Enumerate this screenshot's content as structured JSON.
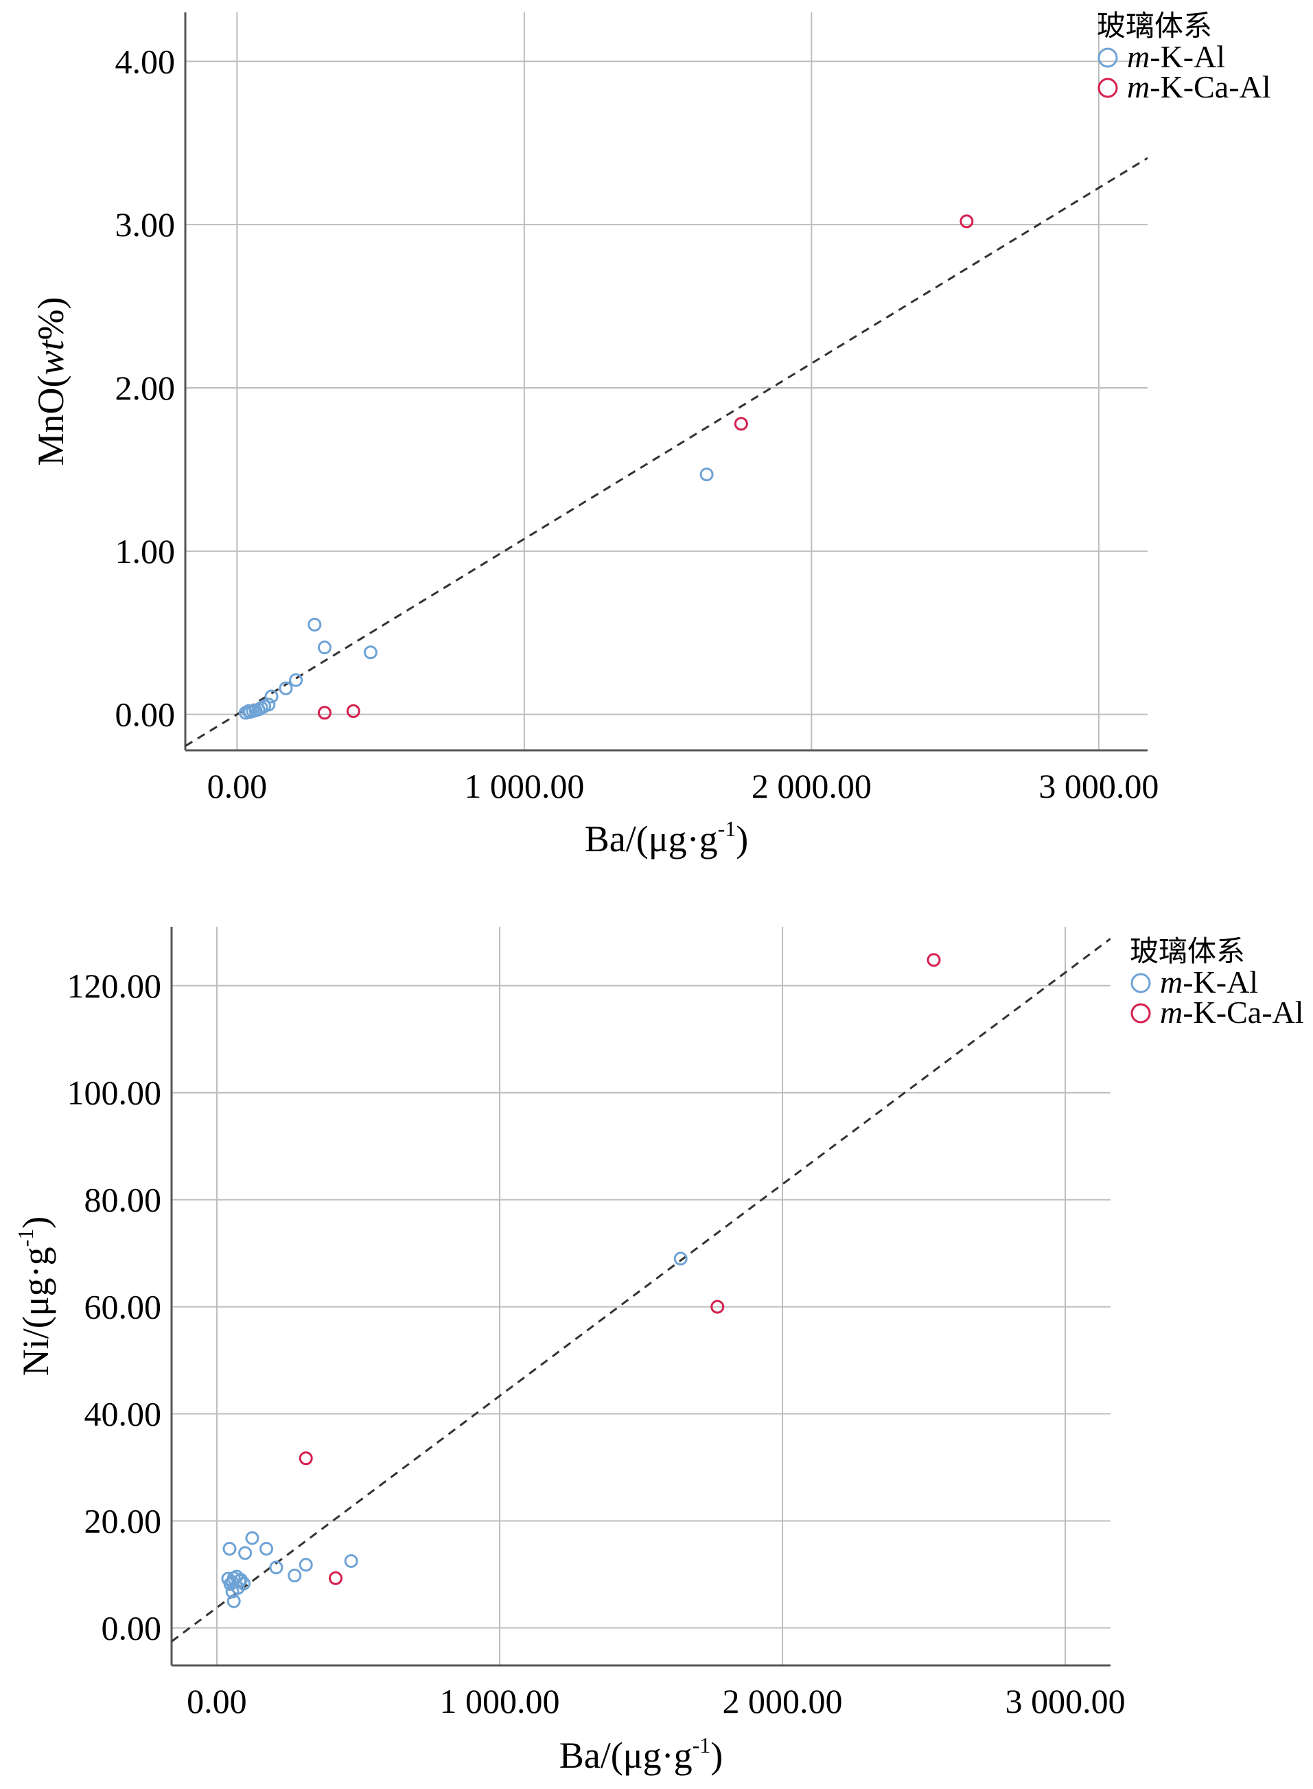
{
  "colors": {
    "series_mKAl": "#6fa3d6",
    "series_mKCaAl": "#d6204e",
    "grid": "#bdbdbd",
    "axis": "#555555",
    "fit_line": "#333333"
  },
  "chart_data": [
    {
      "type": "scatter",
      "title": "",
      "xlabel": "Ba/(μg·g",
      "xlabel_sup": "-1",
      "xlabel_close": ")",
      "ylabel": "MnO(wt%)",
      "ylabel_parts": {
        "pre": "MnO(",
        "italic": "wt",
        "post": "%)"
      },
      "xlim": [
        -180,
        3170
      ],
      "ylim": [
        -0.22,
        4.3
      ],
      "x_ticks": [
        0,
        1000,
        2000,
        3000
      ],
      "x_tick_labels": [
        "0.00",
        "1 000.00",
        "2 000.00",
        "3 000.00"
      ],
      "y_ticks": [
        0,
        1,
        2,
        3,
        4
      ],
      "y_tick_labels": [
        "0.00",
        "1.00",
        "2.00",
        "3.00",
        "4.00"
      ],
      "grid": true,
      "legend_position": "top-right",
      "legend_title": "玻璃体系",
      "fit_line": {
        "style": "dashed",
        "slope": 0.001075,
        "intercept": 0.0
      },
      "series": [
        {
          "name": "m-K-Al",
          "name_parts": {
            "italic": "m",
            "rest": "-K-Al"
          },
          "points": [
            [
              30,
              0.01
            ],
            [
              40,
              0.02
            ],
            [
              45,
              0.015
            ],
            [
              55,
              0.02
            ],
            [
              65,
              0.025
            ],
            [
              75,
              0.03
            ],
            [
              85,
              0.04
            ],
            [
              95,
              0.05
            ],
            [
              110,
              0.06
            ],
            [
              120,
              0.11
            ],
            [
              170,
              0.16
            ],
            [
              205,
              0.21
            ],
            [
              270,
              0.55
            ],
            [
              305,
              0.41
            ],
            [
              465,
              0.38
            ],
            [
              1635,
              1.47
            ]
          ]
        },
        {
          "name": "m-K-Ca-Al",
          "name_parts": {
            "italic": "m",
            "rest": "-K-Ca-Al"
          },
          "points": [
            [
              305,
              0.01
            ],
            [
              405,
              0.02
            ],
            [
              1755,
              1.78
            ],
            [
              2540,
              3.02
            ]
          ]
        }
      ]
    },
    {
      "type": "scatter",
      "title": "",
      "xlabel": "Ba/(μg·g",
      "xlabel_sup": "-1",
      "xlabel_close": ")",
      "ylabel": "Ni/(μg·g",
      "ylabel_sup": "-1",
      "ylabel_close": ")",
      "xlim": [
        -160,
        3160
      ],
      "ylim": [
        -7,
        131
      ],
      "x_ticks": [
        0,
        1000,
        2000,
        3000
      ],
      "x_tick_labels": [
        "0.00",
        "1 000.00",
        "2 000.00",
        "3 000.00"
      ],
      "y_ticks": [
        0,
        20,
        40,
        60,
        80,
        100,
        120
      ],
      "y_tick_labels": [
        "0.00",
        "20.00",
        "40.00",
        "60.00",
        "80.00",
        "100.00",
        "120.00"
      ],
      "grid": true,
      "legend_position": "top-right",
      "legend_title": "玻璃体系",
      "fit_line": {
        "style": "dashed",
        "slope": 0.03955,
        "intercept": 3.8
      },
      "series": [
        {
          "name": "m-K-Al",
          "name_parts": {
            "italic": "m",
            "rest": "-K-Al"
          },
          "points": [
            [
              45,
              14.8
            ],
            [
              40,
              9.2
            ],
            [
              48,
              8.2
            ],
            [
              55,
              6.8
            ],
            [
              60,
              5.0
            ],
            [
              55,
              8.5
            ],
            [
              60,
              9.3
            ],
            [
              70,
              9.6
            ],
            [
              75,
              7.5
            ],
            [
              80,
              8.8
            ],
            [
              85,
              9.0
            ],
            [
              95,
              8.3
            ],
            [
              100,
              14.0
            ],
            [
              125,
              16.8
            ],
            [
              175,
              14.8
            ],
            [
              210,
              11.3
            ],
            [
              275,
              9.8
            ],
            [
              315,
              11.8
            ],
            [
              475,
              12.5
            ],
            [
              1640,
              69.0
            ]
          ]
        },
        {
          "name": "m-K-Ca-Al",
          "name_parts": {
            "italic": "m",
            "rest": "-K-Ca-Al"
          },
          "points": [
            [
              315,
              31.7
            ],
            [
              420,
              9.3
            ],
            [
              1770,
              60.0
            ],
            [
              2535,
              124.8
            ]
          ]
        }
      ]
    }
  ]
}
